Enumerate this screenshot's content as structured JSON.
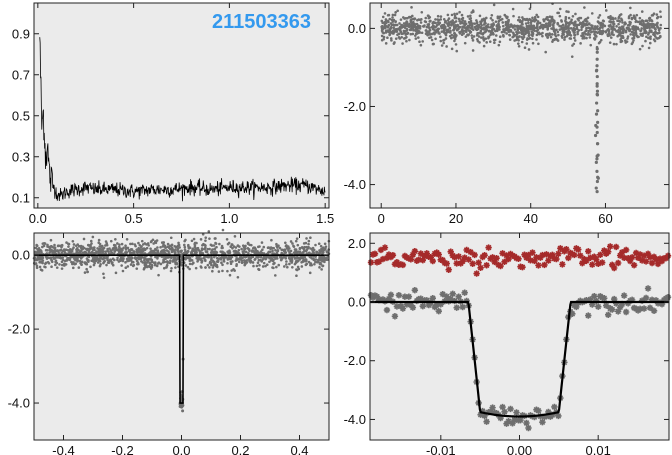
{
  "colors": {
    "panel_bg": "#ebebeb",
    "frame": "#222222",
    "data_gray": "#6e6e6e",
    "model": "#000000",
    "residual": "#a52a2a",
    "id_label": "#3399ee"
  },
  "chart_data": [
    {
      "type": "line",
      "panel": "top-left",
      "title": "",
      "xlabel": "",
      "ylabel": "",
      "annotation": "211503363",
      "xlim": [
        -0.02,
        1.52
      ],
      "ylim": [
        0.05,
        1.05
      ],
      "xticks": [
        0.0,
        0.5,
        1.0,
        1.5
      ],
      "xtick_labels": [
        "0.0",
        "0.5",
        "1.0",
        "1.5"
      ],
      "yticks": [
        0.1,
        0.3,
        0.5,
        0.7,
        0.9
      ],
      "ytick_labels": [
        "0.1",
        "0.3",
        "0.5",
        "0.7",
        "0.9"
      ],
      "x": [
        0.01,
        0.02,
        0.03,
        0.04,
        0.05,
        0.06,
        0.07,
        0.08,
        0.1,
        0.12,
        0.15,
        0.2,
        0.25,
        0.3,
        0.4,
        0.5,
        0.6,
        0.7,
        0.8,
        0.9,
        1.0,
        1.1,
        1.2,
        1.3,
        1.4,
        1.5
      ],
      "y": [
        0.9,
        0.45,
        0.52,
        0.3,
        0.35,
        0.22,
        0.18,
        0.16,
        0.12,
        0.11,
        0.13,
        0.14,
        0.15,
        0.14,
        0.14,
        0.13,
        0.14,
        0.14,
        0.15,
        0.14,
        0.15,
        0.15,
        0.15,
        0.16,
        0.16,
        0.13
      ],
      "noise": 0.018
    },
    {
      "type": "scatter",
      "panel": "top-right",
      "title": "",
      "xlabel": "",
      "ylabel": "",
      "xlim": [
        -3,
        77
      ],
      "ylim": [
        -4.6,
        0.65
      ],
      "xticks": [
        0,
        20,
        40,
        60,
        80
      ],
      "xtick_labels": [
        "0",
        "20",
        "40",
        "60",
        "80"
      ],
      "yticks": [
        0.0,
        -2.0,
        -4.0
      ],
      "ytick_labels": [
        "0.0",
        "-2.0",
        "-4.0"
      ],
      "baseline": 0.0,
      "scatter": 0.18,
      "x_range": [
        0,
        75
      ],
      "n_points": 1400,
      "transits": [
        {
          "time": 57.8,
          "depth": 4.0
        }
      ]
    },
    {
      "type": "scatter",
      "panel": "bottom-left",
      "title": "",
      "xlabel": "",
      "ylabel": "",
      "xlim": [
        -0.5,
        0.5
      ],
      "ylim": [
        -5.0,
        0.6
      ],
      "xticks": [
        -0.4,
        -0.2,
        0.0,
        0.2,
        0.4
      ],
      "xtick_labels": [
        "-0.4",
        "-0.2",
        "0.0",
        "0.2",
        "0.4"
      ],
      "yticks": [
        0.0,
        -2.0,
        -4.0
      ],
      "ytick_labels": [
        "0.0",
        "-2.0",
        "-4.0"
      ],
      "baseline": 0.0,
      "scatter": 0.18,
      "n_points": 1600,
      "model": {
        "depth": 4.0,
        "half_width": 0.0065,
        "ingress": 0.0015
      }
    },
    {
      "type": "scatter",
      "panel": "bottom-right",
      "title": "",
      "xlabel": "",
      "ylabel": "",
      "xlim": [
        -0.019,
        0.019
      ],
      "ylim": [
        -4.7,
        2.35
      ],
      "xticks": [
        -0.01,
        0.0,
        0.01
      ],
      "xtick_labels": [
        "-0.01",
        "0.00",
        "0.01"
      ],
      "yticks": [
        2.0,
        0.0,
        -2.0,
        -4.0
      ],
      "ytick_labels": [
        "2.0",
        "0.0",
        "-2.0",
        "-4.0"
      ],
      "series": [
        {
          "role": "data",
          "scatter": 0.17,
          "n_points": 150
        },
        {
          "role": "residuals",
          "offset": 1.5,
          "scatter": 0.17,
          "n_points": 150
        }
      ],
      "model": {
        "depth": 3.9,
        "half_width": 0.0065,
        "ingress": 0.0015,
        "floor_curvature": 0.15
      }
    }
  ]
}
